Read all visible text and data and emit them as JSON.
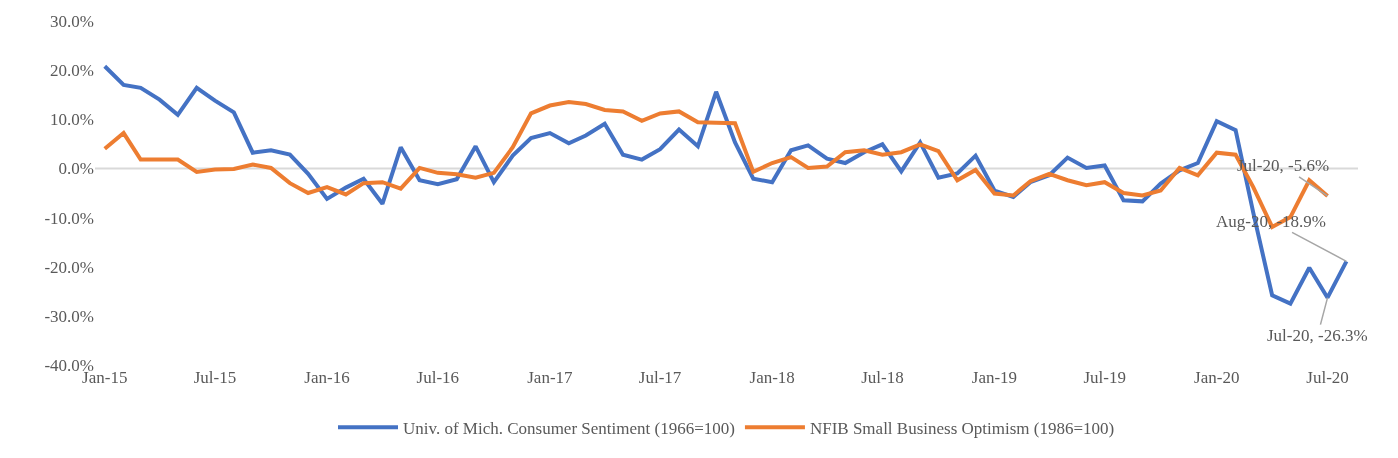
{
  "chart_data": {
    "type": "line",
    "x": [
      "2015-01",
      "2015-02",
      "2015-03",
      "2015-04",
      "2015-05",
      "2015-06",
      "2015-07",
      "2015-08",
      "2015-09",
      "2015-10",
      "2015-11",
      "2015-12",
      "2016-01",
      "2016-02",
      "2016-03",
      "2016-04",
      "2016-05",
      "2016-06",
      "2016-07",
      "2016-08",
      "2016-09",
      "2016-10",
      "2016-11",
      "2016-12",
      "2017-01",
      "2017-02",
      "2017-03",
      "2017-04",
      "2017-05",
      "2017-06",
      "2017-07",
      "2017-08",
      "2017-09",
      "2017-10",
      "2017-11",
      "2017-12",
      "2018-01",
      "2018-02",
      "2018-03",
      "2018-04",
      "2018-05",
      "2018-06",
      "2018-07",
      "2018-08",
      "2018-09",
      "2018-10",
      "2018-11",
      "2018-12",
      "2019-01",
      "2019-02",
      "2019-03",
      "2019-04",
      "2019-05",
      "2019-06",
      "2019-07",
      "2019-08",
      "2019-09",
      "2019-10",
      "2019-11",
      "2019-12",
      "2020-01",
      "2020-02",
      "2020-03",
      "2020-04",
      "2020-05",
      "2020-06",
      "2020-07",
      "2020-08"
    ],
    "series": [
      {
        "name": "Univ. of Mich. Consumer Sentiment (1966=100)",
        "color": "#4472c4",
        "values": [
          20.8,
          17.0,
          16.4,
          14.0,
          10.9,
          16.4,
          13.8,
          11.4,
          3.2,
          3.7,
          2.8,
          -1.1,
          -6.2,
          -3.9,
          -2.1,
          -7.2,
          4.3,
          -2.4,
          -3.2,
          -2.2,
          4.5,
          -2.8,
          2.6,
          6.2,
          7.2,
          5.1,
          6.7,
          9.1,
          2.8,
          1.8,
          3.9,
          7.9,
          4.5,
          15.6,
          5.3,
          -2.1,
          -2.8,
          3.7,
          4.7,
          2.0,
          1.1,
          3.3,
          4.9,
          -0.6,
          5.3,
          -1.9,
          -1.0,
          2.6,
          -4.5,
          -5.8,
          -2.8,
          -1.4,
          2.2,
          0.1,
          0.6,
          -6.5,
          -6.7,
          -3.1,
          -0.4,
          1.1,
          9.6,
          7.8,
          -9.0,
          -25.8,
          -27.5,
          -20.2,
          -26.3,
          -18.9
        ]
      },
      {
        "name": "NFIB Small Business Optimism (1986=100)",
        "color": "#ed7d31",
        "values": [
          4.0,
          7.2,
          1.8,
          1.8,
          1.8,
          -0.7,
          -0.2,
          -0.1,
          0.8,
          0.1,
          -3.0,
          -5.0,
          -3.8,
          -5.3,
          -3.0,
          -2.8,
          -4.1,
          0.1,
          -0.9,
          -1.2,
          -1.9,
          -0.9,
          4.3,
          11.2,
          12.8,
          13.5,
          13.1,
          11.9,
          11.6,
          9.7,
          11.2,
          11.6,
          9.4,
          9.3,
          9.2,
          -0.7,
          1.1,
          2.3,
          0.1,
          0.4,
          3.3,
          3.7,
          2.8,
          3.3,
          4.9,
          3.5,
          -2.4,
          -0.3,
          -5.1,
          -5.5,
          -2.6,
          -1.1,
          -2.4,
          -3.4,
          -2.8,
          -5.0,
          -5.5,
          -4.5,
          0.1,
          -1.4,
          3.2,
          2.8,
          -3.8,
          -11.9,
          -9.9,
          -2.4,
          -5.6,
          null
        ]
      }
    ],
    "xlim": [
      "2014-12-16",
      "2020-08-20"
    ],
    "xticks": [
      {
        "value": "2015-01",
        "label": "Jan-15"
      },
      {
        "value": "2015-07",
        "label": "Jul-15"
      },
      {
        "value": "2016-01",
        "label": "Jan-16"
      },
      {
        "value": "2016-07",
        "label": "Jul-16"
      },
      {
        "value": "2017-01",
        "label": "Jan-17"
      },
      {
        "value": "2017-07",
        "label": "Jul-17"
      },
      {
        "value": "2018-01",
        "label": "Jan-18"
      },
      {
        "value": "2018-07",
        "label": "Jul-18"
      },
      {
        "value": "2019-01",
        "label": "Jan-19"
      },
      {
        "value": "2019-07",
        "label": "Jul-19"
      },
      {
        "value": "2020-01",
        "label": "Jan-20"
      },
      {
        "value": "2020-07",
        "label": "Jul-20"
      }
    ],
    "ylim": [
      -40,
      30
    ],
    "yticks": [
      {
        "value": -40,
        "label": "-40.0%"
      },
      {
        "value": -30,
        "label": "-30.0%"
      },
      {
        "value": -20,
        "label": "-20.0%"
      },
      {
        "value": -10,
        "label": "-10.0%"
      },
      {
        "value": 0,
        "label": "0.0%"
      },
      {
        "value": 10,
        "label": "10.0%"
      },
      {
        "value": 20,
        "label": "20.0%"
      },
      {
        "value": 30,
        "label": "30.0%"
      }
    ],
    "annotations": [
      {
        "text": "Jul-20, -5.6%",
        "x": "2020-07",
        "y": -5.6
      },
      {
        "text": "Aug-20, -18.9%",
        "x": "2020-08",
        "y": -18.9
      },
      {
        "text": "Jul-20, -26.3%",
        "x": "2020-07",
        "y": -26.3
      }
    ],
    "ref_lines": [
      {
        "axis": "y",
        "value": 0,
        "color": "#d9d9d9"
      }
    ],
    "grid": false,
    "legend": "bottom",
    "marker": "none",
    "line_style": "solid"
  }
}
